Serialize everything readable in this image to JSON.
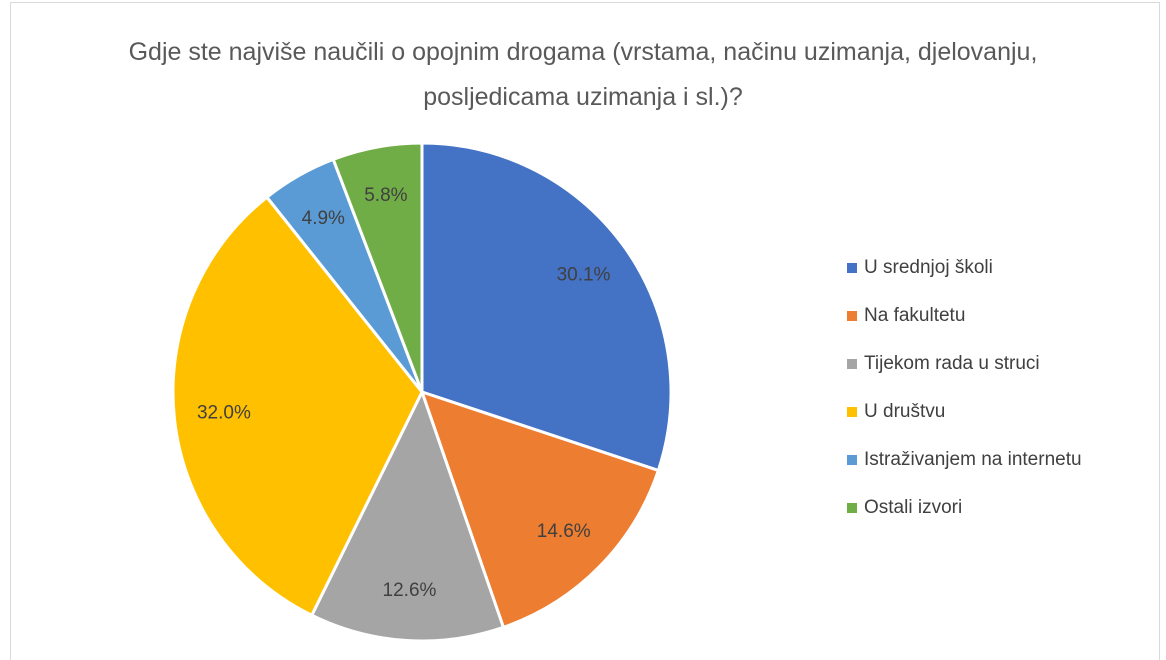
{
  "chart_data": {
    "type": "pie",
    "title": "Gdje ste najviše naučili o opojnim drogama (vrstama, načinu uzimanja, djelovanju, posljedicama uzimanja i sl.)?",
    "categories": [
      "U srednjoj školi",
      "Na fakultetu",
      "Tijekom rada u struci",
      "U društvu",
      "Istraživanjem na internetu",
      "Ostali izvori"
    ],
    "values": [
      30.1,
      14.6,
      12.6,
      32,
      4.9,
      5.8
    ],
    "value_labels": [
      "30.1%",
      "14.6%",
      "12.6%",
      "32.0%",
      "4.9%",
      "5.8%"
    ],
    "colors": [
      "#4472c4",
      "#ed7d31",
      "#a5a5a5",
      "#ffc000",
      "#5b9bd5",
      "#70ad47"
    ],
    "legend": "right"
  }
}
